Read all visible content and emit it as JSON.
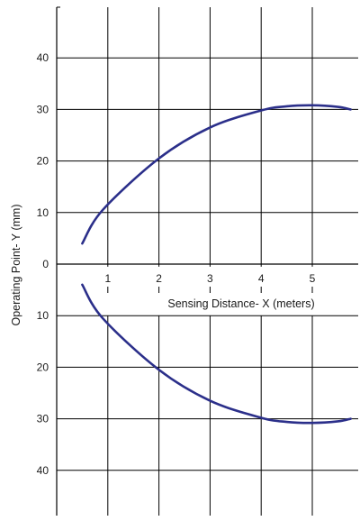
{
  "chart_data": {
    "type": "line",
    "title": "",
    "xlabel": "Sensing Distance- X (meters)",
    "ylabel": "Operating Point- Y (mm)",
    "xlim": [
      0,
      5.9
    ],
    "ylim": [
      -49,
      51
    ],
    "grid": true,
    "x_ticks": [
      {
        "value": 1,
        "label": "1"
      },
      {
        "value": 2,
        "label": "2"
      },
      {
        "value": 3,
        "label": "3"
      },
      {
        "value": 4,
        "label": "4"
      },
      {
        "value": 5,
        "label": "5"
      }
    ],
    "y_ticks": [
      {
        "value": 40,
        "label": "40"
      },
      {
        "value": 30,
        "label": "30"
      },
      {
        "value": 20,
        "label": "20"
      },
      {
        "value": 10,
        "label": "10"
      },
      {
        "value": 0,
        "label": "0"
      },
      {
        "value": -10,
        "label": "10"
      },
      {
        "value": -20,
        "label": "20"
      },
      {
        "value": -30,
        "label": "30"
      },
      {
        "value": -40,
        "label": "40"
      }
    ],
    "series": [
      {
        "color": "#2b2f8a",
        "x": [
          0.5,
          0.9,
          2.0,
          3.0,
          4.0,
          4.5,
          5.0,
          5.5,
          5.75
        ],
        "y": [
          4,
          10.5,
          20.5,
          26.5,
          29.8,
          30.6,
          30.8,
          30.5,
          30
        ]
      },
      {
        "color": "#2b2f8a",
        "x": [
          0.5,
          0.9,
          2.0,
          3.0,
          4.0,
          4.5,
          5.0,
          5.5,
          5.75
        ],
        "y": [
          -4,
          -10.5,
          -20.5,
          -26.5,
          -29.8,
          -30.6,
          -30.8,
          -30.5,
          -30
        ]
      }
    ]
  }
}
